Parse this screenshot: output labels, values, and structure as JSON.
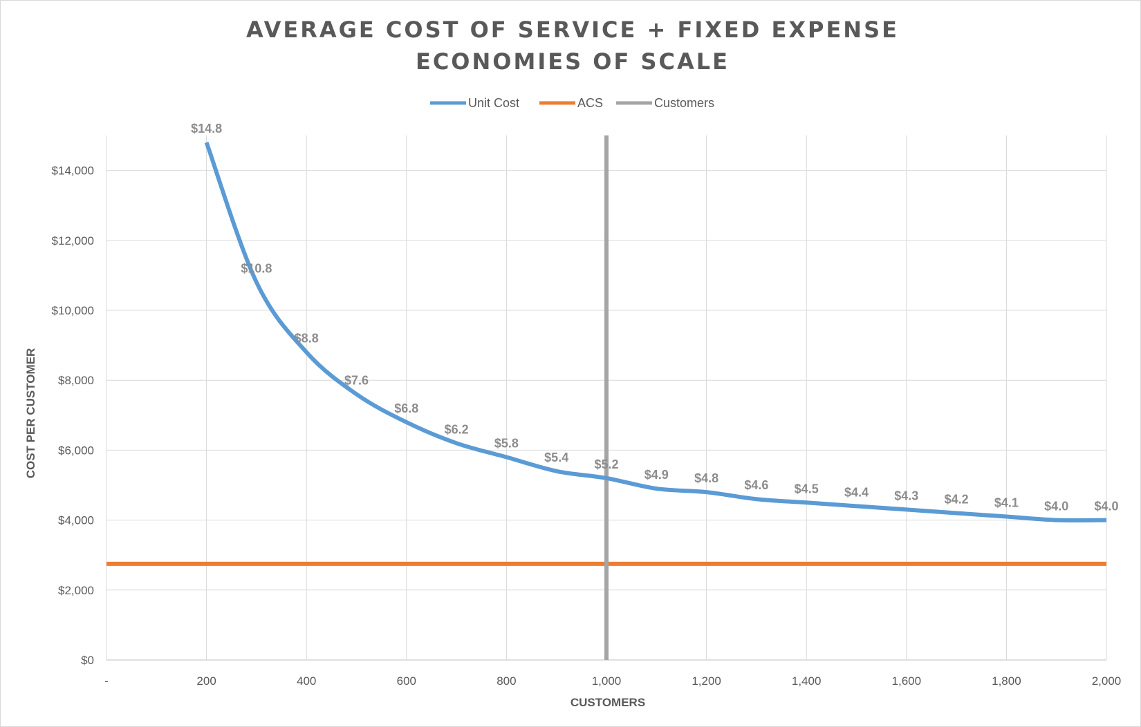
{
  "chart_data": {
    "type": "line",
    "title_lines": [
      "AVERAGE COST OF SERVICE + FIXED EXPENSE",
      "ECONOMIES OF SCALE"
    ],
    "xlabel": "CUSTOMERS",
    "ylabel": "COST PER CUSTOMER",
    "xlim": [
      0,
      2000
    ],
    "ylim": [
      0,
      15000
    ],
    "x_ticks": [
      0,
      200,
      400,
      600,
      800,
      1000,
      1200,
      1400,
      1600,
      1800,
      2000
    ],
    "x_tick_labels": [
      "-",
      "200",
      "400",
      "600",
      "800",
      "1,000",
      "1,200",
      "1,400",
      "1,600",
      "1,800",
      "2,000"
    ],
    "y_ticks": [
      0,
      2000,
      4000,
      6000,
      8000,
      10000,
      12000,
      14000
    ],
    "y_tick_labels": [
      "$0",
      "$2,000",
      "$4,000",
      "$6,000",
      "$8,000",
      "$10,000",
      "$12,000",
      "$14,000"
    ],
    "grid": true,
    "legend_position": "top",
    "legend": [
      {
        "name": "Unit Cost",
        "color": "#5b9bd5"
      },
      {
        "name": "ACS",
        "color": "#ed7d31"
      },
      {
        "name": "Customers",
        "color": "#a5a5a5"
      }
    ],
    "series": [
      {
        "name": "Unit Cost",
        "color": "#5b9bd5",
        "x": [
          200,
          300,
          400,
          500,
          600,
          700,
          800,
          900,
          1000,
          1100,
          1200,
          1300,
          1400,
          1500,
          1600,
          1700,
          1800,
          1900,
          2000
        ],
        "values": [
          14800,
          10800,
          8800,
          7600,
          6800,
          6200,
          5800,
          5400,
          5200,
          4900,
          4800,
          4600,
          4500,
          4400,
          4300,
          4200,
          4100,
          4000,
          4000
        ],
        "data_labels": [
          "$14.8",
          "$10.8",
          "$8.8",
          "$7.6",
          "$6.8",
          "$6.2",
          "$5.8",
          "$5.4",
          "$5.2",
          "$4.9",
          "$4.8",
          "$4.6",
          "$4.5",
          "$4.4",
          "$4.3",
          "$4.2",
          "$4.1",
          "$4.0",
          "$4.0"
        ]
      },
      {
        "name": "ACS",
        "color": "#ed7d31",
        "x": [
          0,
          2000
        ],
        "values": [
          2750,
          2750
        ]
      },
      {
        "name": "Customers",
        "color": "#a5a5a5",
        "x": [
          1000,
          1000
        ],
        "values": [
          0,
          15000
        ]
      }
    ]
  }
}
